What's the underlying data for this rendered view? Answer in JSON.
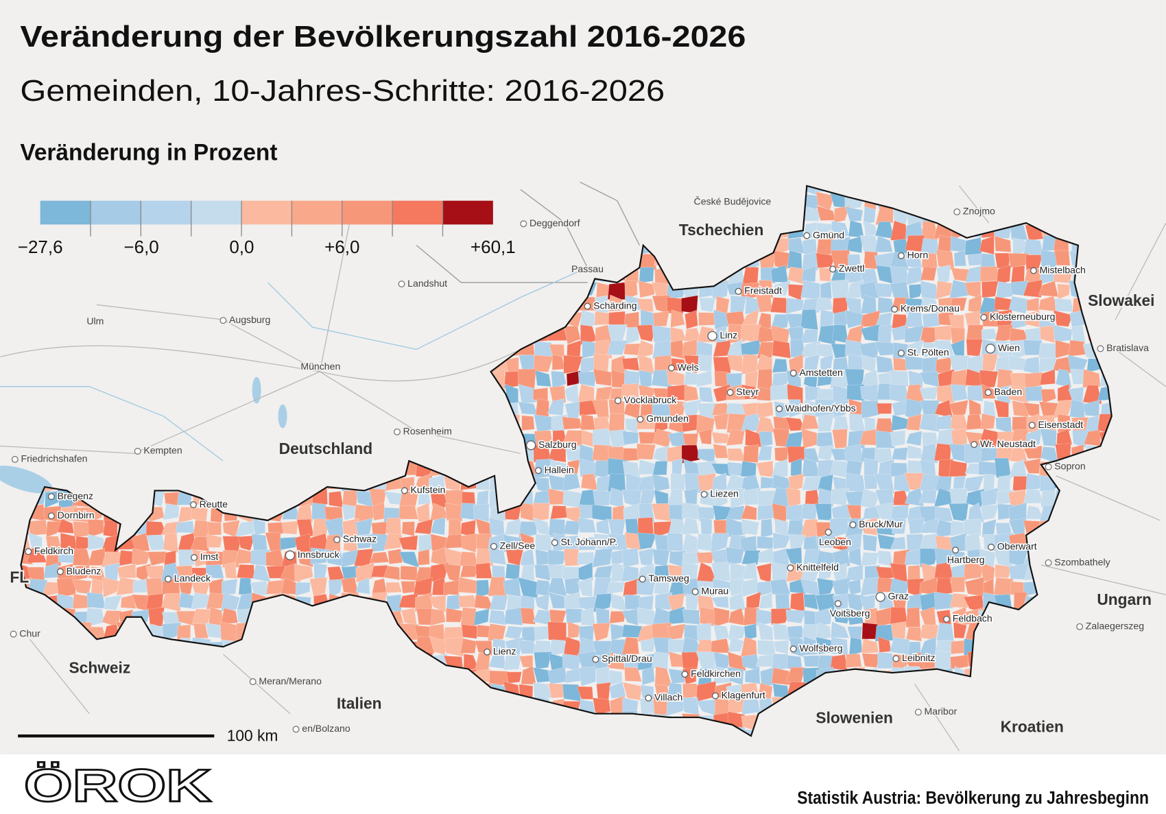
{
  "header": {
    "title": "Veränderung der Bevölkerungszahl 2016-2026",
    "subtitle": "Gemeinden, 10-Jahres-Schritte: 2016-2026"
  },
  "legend": {
    "title": "Veränderung in Prozent",
    "colors": [
      "#7db7da",
      "#a6cbe6",
      "#b5d3ea",
      "#c5dced",
      "#fbb9a0",
      "#f9a88b",
      "#f7977a",
      "#f4795e",
      "#a50f15"
    ],
    "ticks": [
      "−27,6",
      "−6,0",
      "0,0",
      "+6,0",
      "+60,1"
    ]
  },
  "map": {
    "countries": [
      "Tschechien",
      "Deutschland",
      "Slowakei",
      "Ungarn",
      "Schweiz",
      "Italien",
      "Slowenien",
      "Kroatien",
      "FL"
    ],
    "foreign_cities": [
      "České Budějovice",
      "Deggendorf",
      "Passau",
      "Landshut",
      "Ulm",
      "Augsburg",
      "München",
      "Rosenheim",
      "Friedrichshafen",
      "Kempten",
      "Znojmo",
      "Bratislava",
      "Sopron",
      "Szombathely",
      "Zalaegerszeg",
      "Maribor",
      "Chur",
      "Meran/Merano",
      "en/Bolzano"
    ],
    "cities": [
      "Gmünd",
      "Horn",
      "Zwettl",
      "Freistadt",
      "Schärding",
      "Krems/Donau",
      "Klosterneuburg",
      "Mistelbach",
      "Linz",
      "Wien",
      "St. Pölten",
      "Wels",
      "Amstetten",
      "Vöcklabruck",
      "Steyr",
      "Baden",
      "Waidhofen/Ybbs",
      "Gmunden",
      "Eisenstadt",
      "Wr. Neustadt",
      "Salzburg",
      "Hallein",
      "Liezen",
      "Kufstein",
      "Bregenz",
      "Dornbirn",
      "Reutte",
      "Schwaz",
      "Bruck/Mur",
      "Leoben",
      "Feldkirch",
      "Imst",
      "Innsbruck",
      "Zell/See",
      "St. Johann/P.",
      "Oberwart",
      "Hartberg",
      "Bludenz",
      "Landeck",
      "Knittelfeld",
      "Tamsweg",
      "Murau",
      "Graz",
      "Voitsberg",
      "Feldbach",
      "Lienz",
      "Spittal/Drau",
      "Wolfsberg",
      "Leibnitz",
      "Feldkirchen",
      "Villach",
      "Klagenfurt"
    ]
  },
  "scale_label": "100 km",
  "footer": {
    "logo": "ÖROK",
    "source": "Statistik Austria: Bevölkerung zu Jahresbeginn"
  }
}
